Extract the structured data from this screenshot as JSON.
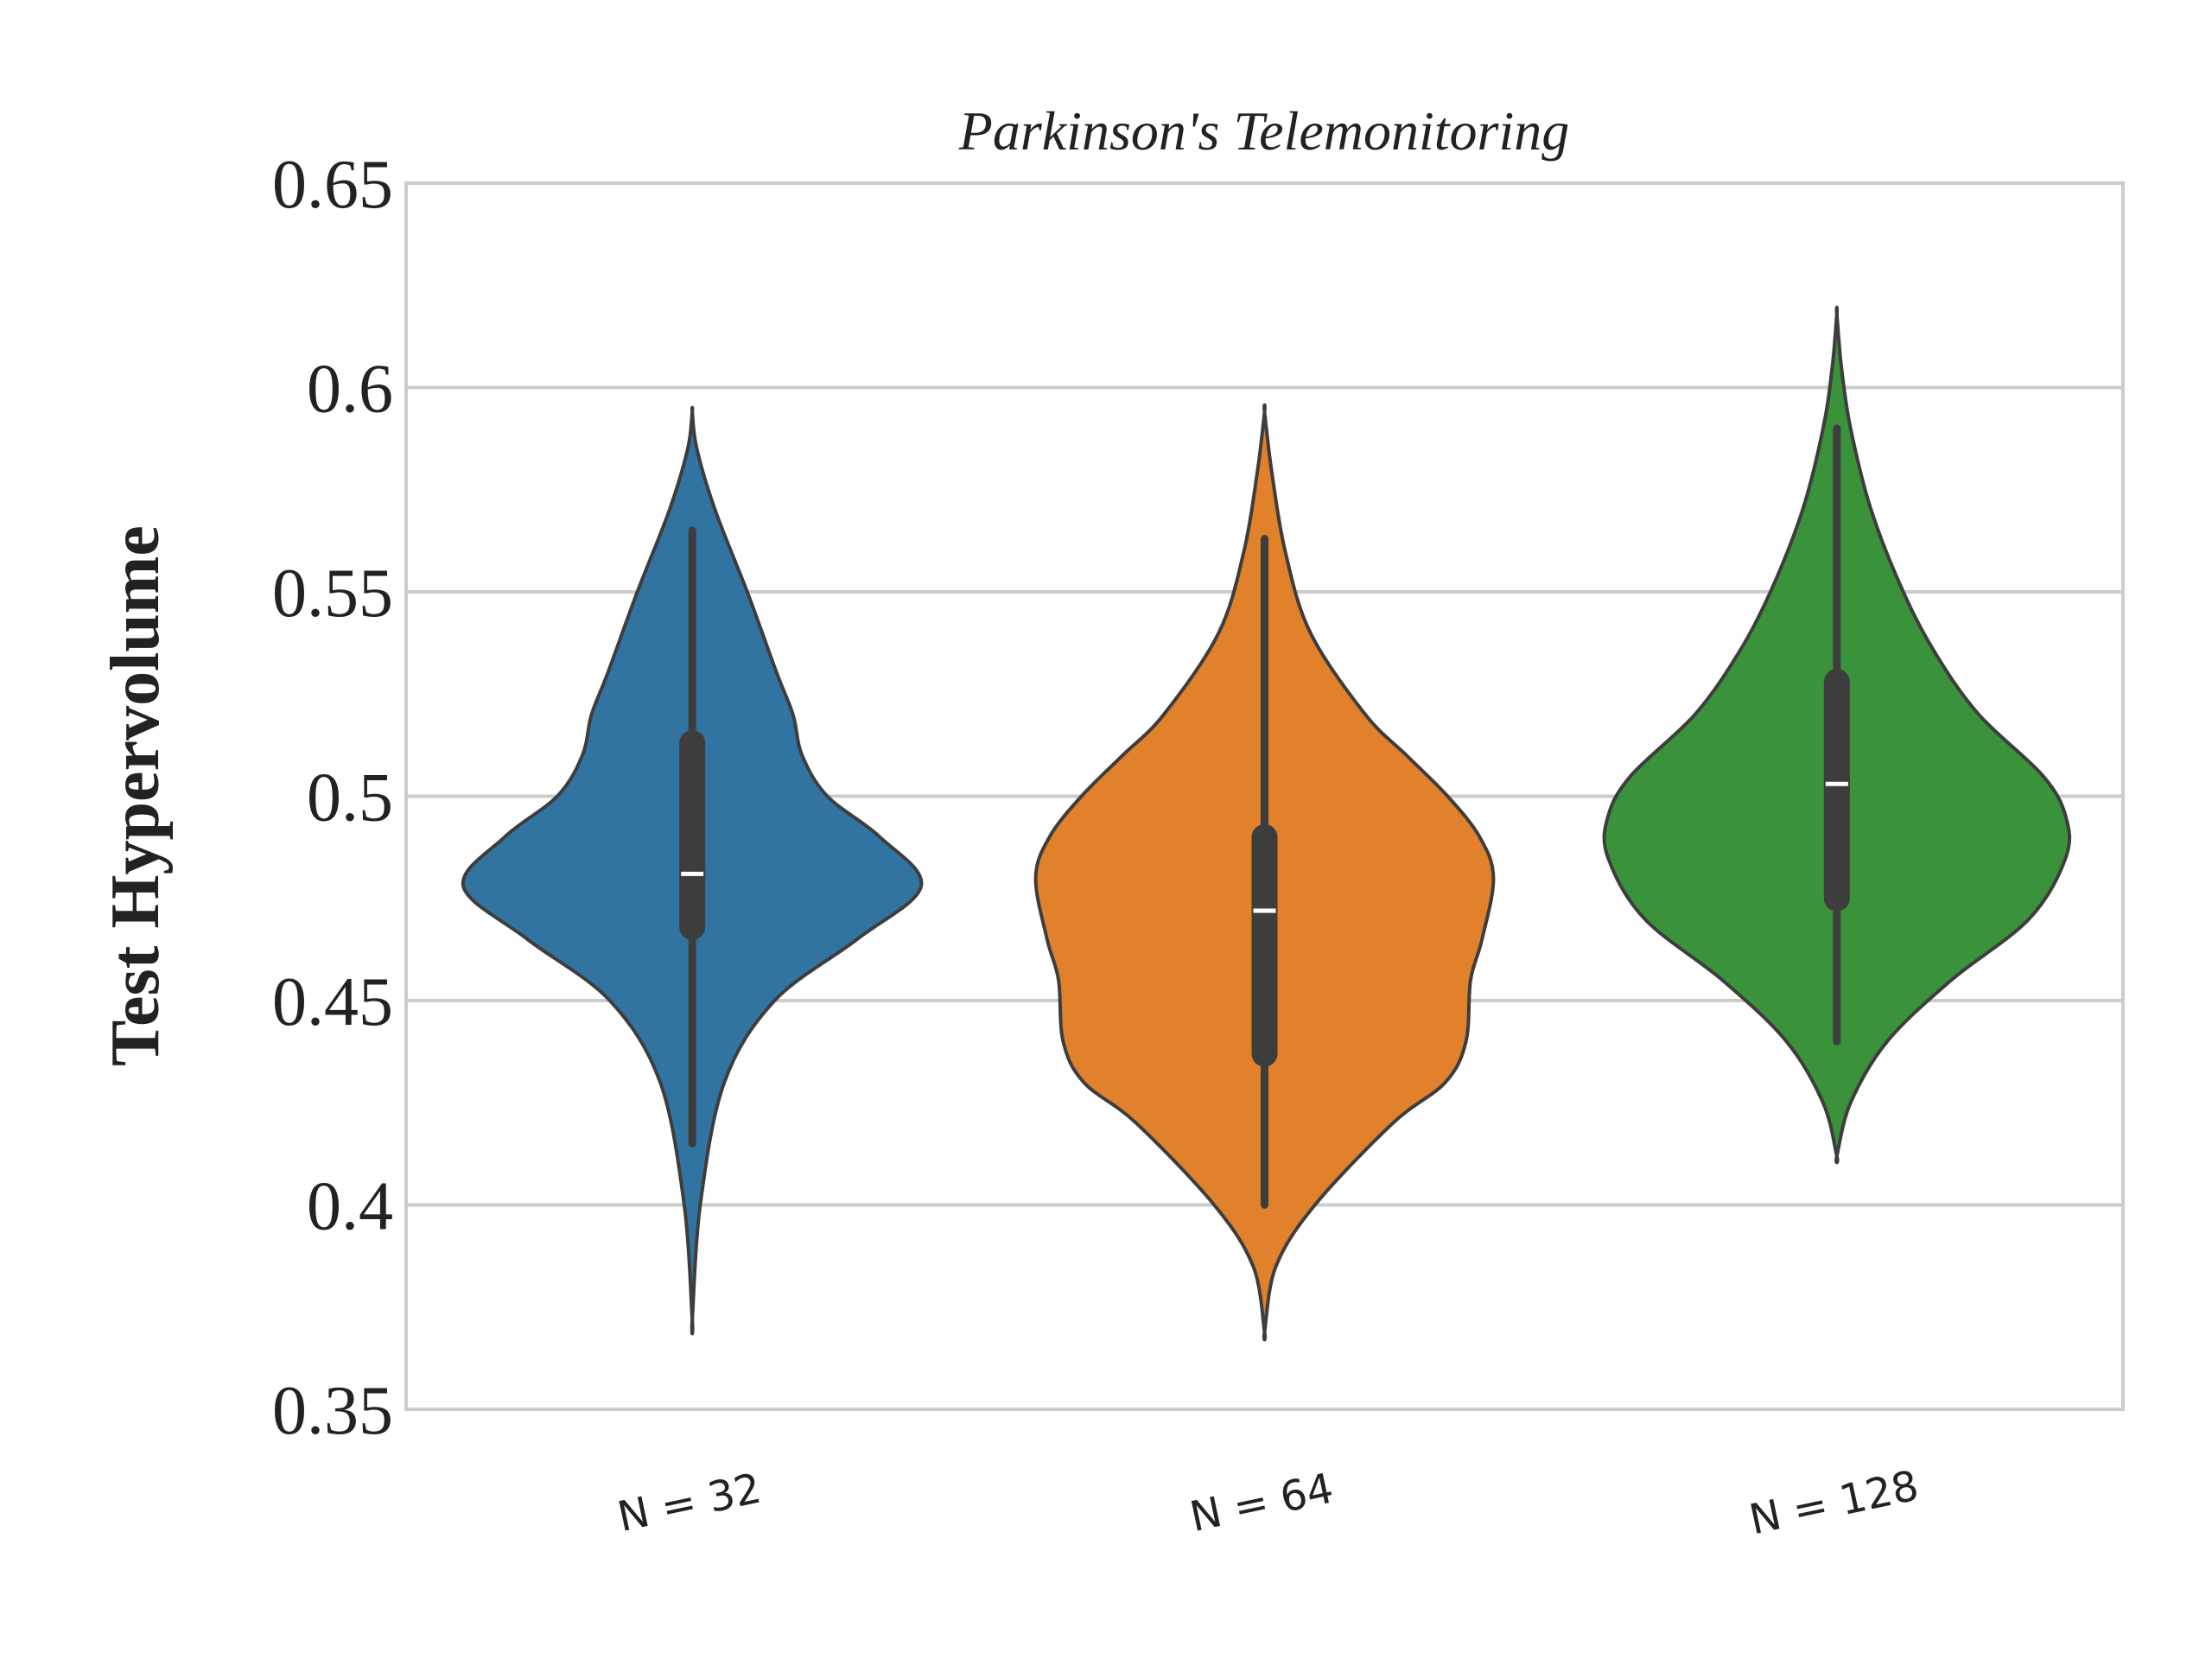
{
  "chart_data": {
    "type": "violin",
    "title": "Parkinson's Telemonitoring",
    "xlabel": "",
    "ylabel": "Test Hypervolume",
    "ylim": [
      0.35,
      0.65
    ],
    "yticks": [
      "0.35",
      "0.4",
      "0.45",
      "0.5",
      "0.55",
      "0.6",
      "0.65"
    ],
    "grid": "horizontal",
    "categories": [
      "N = 32",
      "N = 64",
      "N = 128"
    ],
    "colors": [
      "#3274a1",
      "#e1812c",
      "#3a923a"
    ],
    "series": [
      {
        "category": "N = 32",
        "min": 0.415,
        "q1": 0.468,
        "median": 0.481,
        "q3": 0.513,
        "max": 0.565,
        "kde_min": 0.372,
        "kde_max": 0.594,
        "density": [
          [
            0.372,
            0.0
          ],
          [
            0.4,
            0.035
          ],
          [
            0.43,
            0.14
          ],
          [
            0.45,
            0.36
          ],
          [
            0.465,
            0.72
          ],
          [
            0.478,
            1.0
          ],
          [
            0.49,
            0.82
          ],
          [
            0.5,
            0.59
          ],
          [
            0.51,
            0.48
          ],
          [
            0.52,
            0.44
          ],
          [
            0.53,
            0.37
          ],
          [
            0.55,
            0.24
          ],
          [
            0.57,
            0.1
          ],
          [
            0.585,
            0.02
          ],
          [
            0.594,
            0.0
          ]
        ]
      },
      {
        "category": "N = 64",
        "min": 0.4,
        "q1": 0.437,
        "median": 0.472,
        "q3": 0.49,
        "max": 0.563,
        "kde_min": 0.369,
        "kde_max": 0.594,
        "density": [
          [
            0.369,
            0.0
          ],
          [
            0.385,
            0.05
          ],
          [
            0.4,
            0.22
          ],
          [
            0.42,
            0.56
          ],
          [
            0.43,
            0.79
          ],
          [
            0.44,
            0.88
          ],
          [
            0.455,
            0.9
          ],
          [
            0.465,
            0.95
          ],
          [
            0.48,
            1.0
          ],
          [
            0.49,
            0.94
          ],
          [
            0.5,
            0.8
          ],
          [
            0.51,
            0.62
          ],
          [
            0.52,
            0.44
          ],
          [
            0.54,
            0.2
          ],
          [
            0.56,
            0.09
          ],
          [
            0.58,
            0.03
          ],
          [
            0.594,
            0.0
          ]
        ]
      },
      {
        "category": "N = 128",
        "min": 0.44,
        "q1": 0.475,
        "median": 0.503,
        "q3": 0.528,
        "max": 0.59,
        "kde_min": 0.412,
        "kde_max": 0.618,
        "density": [
          [
            0.412,
            0.0
          ],
          [
            0.425,
            0.06
          ],
          [
            0.44,
            0.22
          ],
          [
            0.455,
            0.5
          ],
          [
            0.47,
            0.84
          ],
          [
            0.485,
            1.0
          ],
          [
            0.495,
            1.0
          ],
          [
            0.505,
            0.9
          ],
          [
            0.52,
            0.62
          ],
          [
            0.535,
            0.43
          ],
          [
            0.55,
            0.29
          ],
          [
            0.57,
            0.15
          ],
          [
            0.59,
            0.06
          ],
          [
            0.605,
            0.02
          ],
          [
            0.618,
            0.0
          ]
        ]
      }
    ]
  }
}
